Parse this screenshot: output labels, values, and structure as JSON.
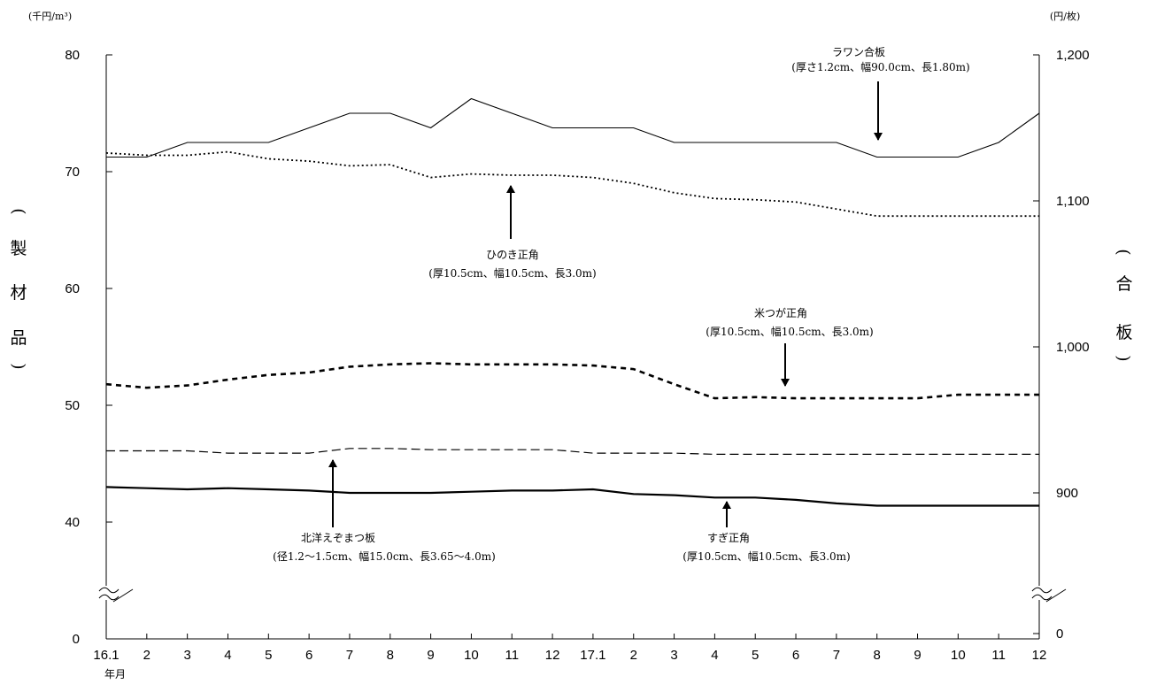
{
  "chart_data": {
    "type": "line",
    "left_unit": "(千円/m³)",
    "right_unit": "(円/枚)",
    "left_axis_title": [
      "(",
      "製",
      "材",
      "品",
      ")"
    ],
    "right_axis_title": [
      "(",
      "合",
      "板",
      ")"
    ],
    "left_ticks": [
      "0",
      "40",
      "50",
      "60",
      "70",
      "80"
    ],
    "right_ticks": [
      "0",
      "900",
      "1,000",
      "1,100",
      "1,200"
    ],
    "left_ylim": [
      0,
      80
    ],
    "right_ylim": [
      0,
      1200
    ],
    "axis_break": true,
    "categories": [
      "16.1",
      "2",
      "3",
      "4",
      "5",
      "6",
      "7",
      "8",
      "9",
      "10",
      "11",
      "12",
      "17.1",
      "2",
      "3",
      "4",
      "5",
      "6",
      "7",
      "8",
      "9",
      "10",
      "11",
      "12"
    ],
    "x_sub_label": "年月",
    "series": [
      {
        "name": "ラワン合板",
        "detail": "(厚さ1.2cm、幅90.0cm、長1.80m)",
        "axis": "right",
        "style": "solid-thin",
        "values": [
          1130,
          1130,
          1140,
          1140,
          1140,
          1150,
          1160,
          1160,
          1150,
          1170,
          1160,
          1150,
          1150,
          1150,
          1140,
          1140,
          1140,
          1140,
          1140,
          1130,
          1130,
          1130,
          1140,
          1160
        ]
      },
      {
        "name": "ひのき正角",
        "detail": "(厚10.5cm、幅10.5cm、長3.0m)",
        "axis": "left",
        "style": "dotted",
        "values": [
          71.6,
          71.4,
          71.4,
          71.7,
          71.1,
          70.9,
          70.5,
          70.6,
          69.5,
          69.8,
          69.7,
          69.7,
          69.5,
          69.0,
          68.2,
          67.7,
          67.6,
          67.4,
          66.8,
          66.2,
          66.2,
          66.2,
          66.2,
          66.2
        ]
      },
      {
        "name": "米つが正角",
        "detail": "(厚10.5cm、幅10.5cm、長3.0m)",
        "axis": "left",
        "style": "dashed-bold",
        "values": [
          51.8,
          51.5,
          51.7,
          52.2,
          52.6,
          52.8,
          53.3,
          53.5,
          53.6,
          53.5,
          53.5,
          53.5,
          53.4,
          53.1,
          51.8,
          50.6,
          50.7,
          50.6,
          50.6,
          50.6,
          50.6,
          50.9,
          50.9,
          50.9
        ]
      },
      {
        "name": "北洋えぞまつ板",
        "detail": "(径1.2〜1.5cm、幅15.0cm、長3.65〜4.0m)",
        "axis": "left",
        "style": "dashed",
        "values": [
          46.1,
          46.1,
          46.1,
          45.9,
          45.9,
          45.9,
          46.3,
          46.3,
          46.2,
          46.2,
          46.2,
          46.2,
          45.9,
          45.9,
          45.9,
          45.8,
          45.8,
          45.8,
          45.8,
          45.8,
          45.8,
          45.8,
          45.8,
          45.8
        ]
      },
      {
        "name": "すぎ正角",
        "detail": "(厚10.5cm、幅10.5cm、長3.0m)",
        "axis": "left",
        "style": "solid-bold",
        "values": [
          43.0,
          42.9,
          42.8,
          42.9,
          42.8,
          42.7,
          42.5,
          42.5,
          42.5,
          42.6,
          42.7,
          42.7,
          42.8,
          42.4,
          42.3,
          42.1,
          42.1,
          41.9,
          41.6,
          41.4,
          41.4,
          41.4,
          41.4,
          41.4
        ]
      }
    ]
  }
}
